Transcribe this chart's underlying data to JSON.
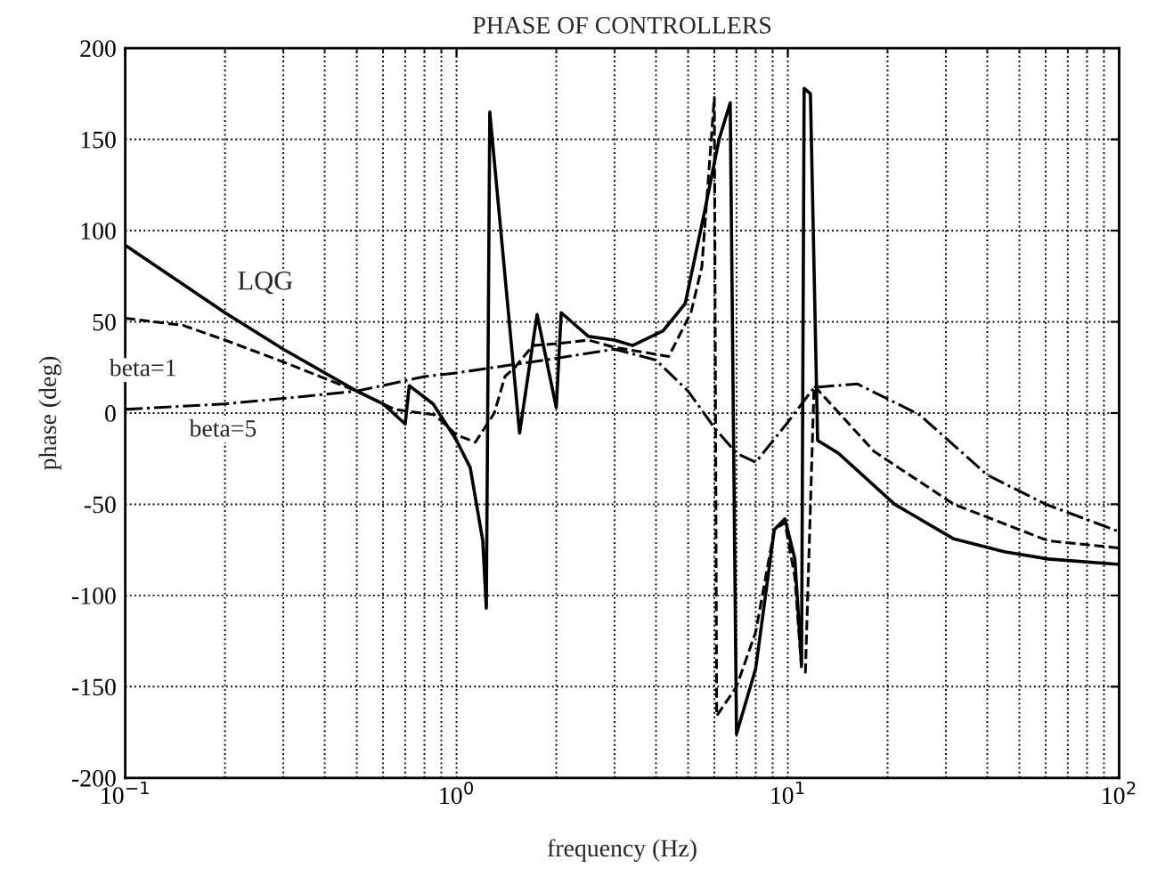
{
  "chart_data": {
    "type": "line",
    "title": "PHASE OF CONTROLLERS",
    "xlabel": "frequency (Hz)",
    "ylabel": "phase (deg)",
    "log": "x",
    "xlim": [
      0.1,
      100
    ],
    "xticks": [
      {
        "value": 0.1,
        "label": "10$^{−1}$"
      },
      {
        "value": 1,
        "label": "10$^{0}$"
      },
      {
        "value": 10,
        "label": "10$^{1}$"
      },
      {
        "value": 100,
        "label": "10$^{2}$"
      }
    ],
    "ylim": [
      -200,
      200
    ],
    "yticks": [
      -200,
      -150,
      -100,
      -50,
      0,
      50,
      100,
      150,
      200
    ],
    "grid": true,
    "legend": false,
    "marker": "none",
    "series": [
      {
        "name": "LQG",
        "color": "#000000",
        "line_style": "solid",
        "x": [
          0.1,
          0.2,
          0.3,
          0.5,
          0.6,
          0.7,
          0.72,
          0.85,
          1.0,
          1.1,
          1.2,
          1.23,
          1.26,
          1.55,
          1.75,
          2.0,
          2.07,
          2.5,
          3.0,
          3.4,
          4.2,
          4.9,
          5.6,
          6.2,
          6.7,
          7.0,
          8.0,
          9.1,
          9.8,
          10.5,
          11.0,
          11.2,
          11.7,
          12.3,
          14.2,
          21,
          31.7,
          45,
          61,
          100
        ],
        "values": [
          92,
          55,
          35,
          12,
          5,
          -6,
          15,
          5,
          -15,
          -30,
          -70,
          -107,
          165,
          -11,
          54,
          3,
          55,
          42,
          40,
          37,
          45,
          60,
          110,
          150,
          170,
          -176,
          -140,
          -64,
          -58,
          -80,
          -138,
          178,
          175,
          -15,
          -22,
          -50,
          -69,
          -76,
          -80,
          -83
        ]
      },
      {
        "name": "beta=1",
        "color": "#000000",
        "line_style": "dashed",
        "x": [
          0.1,
          0.15,
          0.2,
          0.3,
          0.5,
          0.65,
          0.86,
          1.0,
          1.14,
          1.3,
          1.4,
          1.5,
          1.7,
          2.0,
          2.5,
          3.0,
          4.37,
          5.1,
          5.5,
          6.0,
          6.1,
          7.0,
          8.0,
          9.1,
          9.8,
          10.5,
          11.0,
          11.3,
          12.0,
          18.2,
          31.7,
          61,
          100
        ],
        "values": [
          52,
          48,
          40,
          28,
          12,
          2,
          -1,
          -12,
          -16,
          0,
          20,
          25,
          37,
          38,
          40,
          36,
          31,
          55,
          80,
          173,
          -166,
          -150,
          -120,
          -64,
          -60,
          -90,
          -140,
          -142,
          15,
          -21,
          -50,
          -70,
          -74
        ]
      },
      {
        "name": "beta=5",
        "color": "#000000",
        "line_style": "dashdot",
        "x": [
          0.1,
          0.2,
          0.3,
          0.5,
          0.8,
          1.0,
          2.0,
          3.0,
          4.0,
          5.0,
          6.0,
          7.0,
          8.0,
          10.0,
          12.0,
          16.2,
          25,
          40,
          60,
          100
        ],
        "values": [
          2,
          5,
          8,
          12,
          20,
          22,
          30,
          35,
          29,
          12,
          -8,
          -22,
          -27,
          -5,
          14,
          16,
          -1,
          -34,
          -50,
          -65
        ]
      }
    ]
  }
}
